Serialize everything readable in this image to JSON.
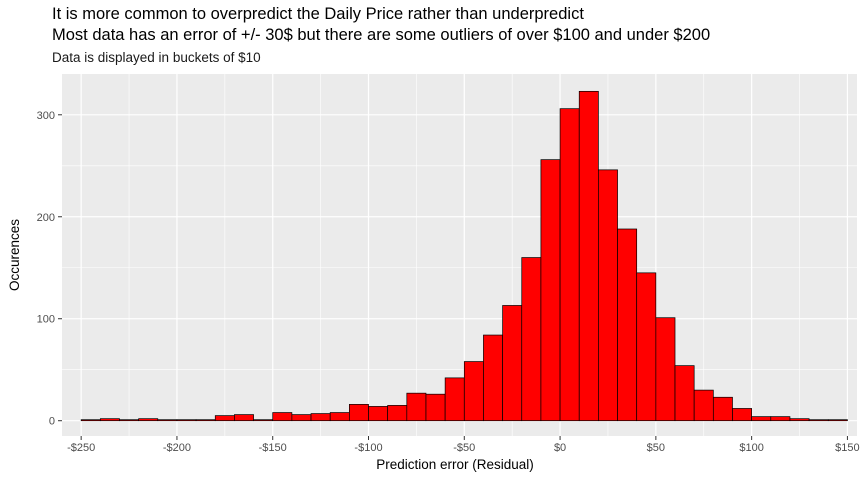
{
  "chart_data": {
    "type": "bar",
    "title": "It is more common to overpredict the Daily Price rather than underpredict",
    "title_line2": "Most data has an error of +/- 30$ but there are some outliers of over $100 and under $200",
    "subtitle": "Data is displayed in buckets of $10",
    "xlabel": "Prediction error (Residual)",
    "ylabel": "Occurences",
    "xlim": [
      -260,
      155
    ],
    "ylim": [
      -15,
      340
    ],
    "x_ticks": [
      -250,
      -200,
      -150,
      -100,
      -50,
      0,
      50,
      100,
      150
    ],
    "x_tick_labels": [
      "-$250",
      "-$200",
      "-$150",
      "-$100",
      "-$50",
      "$0",
      "$50",
      "$100",
      "$150"
    ],
    "y_ticks": [
      0,
      100,
      200,
      300
    ],
    "y_tick_labels": [
      "0",
      "100",
      "200",
      "300"
    ],
    "bin_width": 10,
    "bin_centers": [
      -245,
      -235,
      -225,
      -215,
      -205,
      -195,
      -185,
      -175,
      -165,
      -155,
      -145,
      -135,
      -125,
      -115,
      -105,
      -95,
      -85,
      -75,
      -65,
      -55,
      -45,
      -35,
      -25,
      -15,
      -5,
      5,
      15,
      25,
      35,
      45,
      55,
      65,
      75,
      85,
      95,
      105,
      115,
      125,
      135,
      145
    ],
    "values": [
      1,
      2,
      1,
      2,
      1,
      1,
      1,
      5,
      6,
      1,
      8,
      6,
      7,
      8,
      16,
      14,
      15,
      27,
      26,
      42,
      58,
      84,
      113,
      160,
      256,
      306,
      323,
      246,
      188,
      145,
      101,
      54,
      30,
      23,
      12,
      4,
      4,
      2,
      1,
      1
    ],
    "bar_fill": "#ff0000",
    "bar_stroke": "#000000",
    "panel_background": "#ebebeb",
    "grid_color": "#ffffff"
  }
}
